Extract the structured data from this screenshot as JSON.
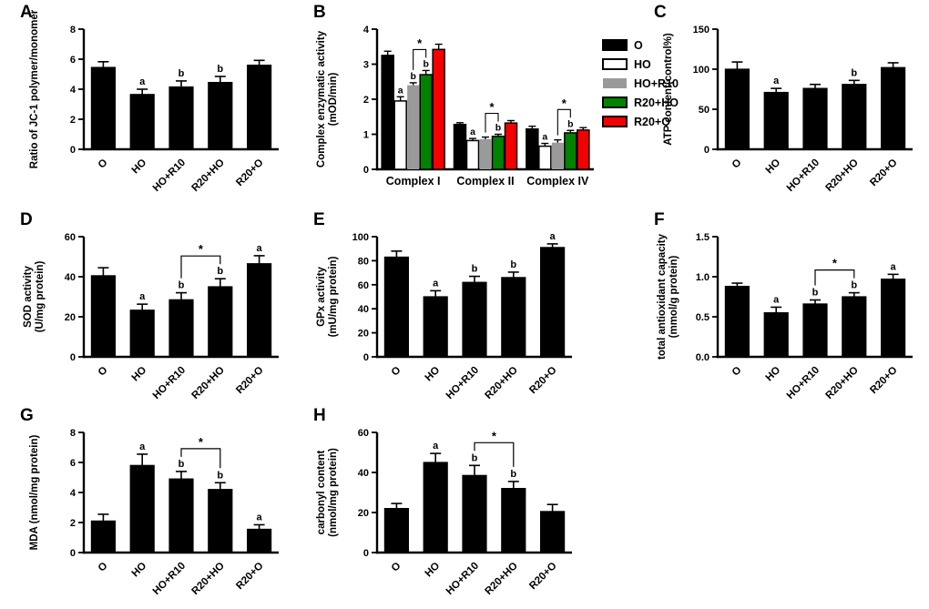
{
  "figure": {
    "panel_letters": [
      "A",
      "B",
      "C",
      "D",
      "E",
      "F",
      "G",
      "H"
    ],
    "group_names": [
      "O",
      "HO",
      "HO+R10",
      "R20+HO",
      "R20+O"
    ],
    "accent_colors": {
      "black": "#000000",
      "white": "#ffffff",
      "gray": "#9a9a9a",
      "green": "#028102",
      "red": "#f40000"
    }
  },
  "chart_data": [
    {
      "panel": "A",
      "type": "bar",
      "ylabel_lines": [
        "Ratio of JC-1 polymer/monomer"
      ],
      "ylim": [
        0,
        8
      ],
      "ytick_values": [
        0,
        2,
        4,
        6,
        8
      ],
      "ytick_labels": [
        "0",
        "2",
        "4",
        "6",
        "8"
      ],
      "categories": [
        "O",
        "HO",
        "HO+R10",
        "R20+HO",
        "R20+O"
      ],
      "values": [
        5.45,
        3.65,
        4.15,
        4.45,
        5.6
      ],
      "errors": [
        0.38,
        0.35,
        0.4,
        0.4,
        0.32
      ],
      "letters": [
        "",
        "a",
        "b",
        "b",
        ""
      ],
      "brackets": [],
      "bar_color": "#000000"
    },
    {
      "panel": "B",
      "type": "grouped-bar",
      "ylabel_lines": [
        "Complex enzymatic activity",
        "(mOD/min)"
      ],
      "ylim": [
        0,
        4
      ],
      "ytick_values": [
        0,
        1,
        2,
        3,
        4
      ],
      "ytick_labels": [
        "0",
        "1",
        "2",
        "3",
        "4"
      ],
      "categories": [
        "Complex I",
        "Complex II",
        "Complex IV"
      ],
      "series": [
        {
          "name": "O",
          "color": "#000000",
          "outlined": true,
          "values": [
            3.25,
            1.28,
            1.15
          ],
          "errors": [
            0.12,
            0.05,
            0.08
          ],
          "letters": [
            "",
            "",
            ""
          ]
        },
        {
          "name": "HO",
          "color": "#ffffff",
          "outlined": true,
          "values": [
            1.95,
            0.82,
            0.66
          ],
          "errors": [
            0.12,
            0.06,
            0.08
          ],
          "letters": [
            "a",
            "a",
            "a"
          ]
        },
        {
          "name": "HO+R10",
          "color": "#9a9a9a",
          "outlined": false,
          "values": [
            2.4,
            0.86,
            0.76
          ],
          "errors": [
            0.07,
            0.06,
            0.08
          ],
          "letters": [
            "b",
            "",
            ""
          ]
        },
        {
          "name": "R20+HO",
          "color": "#028102",
          "outlined": true,
          "values": [
            2.7,
            0.94,
            1.04
          ],
          "errors": [
            0.12,
            0.06,
            0.07
          ],
          "letters": [
            "b",
            "b",
            "b"
          ]
        },
        {
          "name": "R20+O",
          "color": "#f40000",
          "outlined": true,
          "values": [
            3.42,
            1.32,
            1.12
          ],
          "errors": [
            0.15,
            0.07,
            0.07
          ],
          "letters": [
            "",
            "",
            ""
          ]
        }
      ],
      "brackets": [
        {
          "category": 0,
          "from": 2,
          "to": 3,
          "label": "*"
        },
        {
          "category": 1,
          "from": 2,
          "to": 3,
          "label": "*"
        },
        {
          "category": 2,
          "from": 2,
          "to": 3,
          "label": "*"
        }
      ],
      "legend": {
        "position": "right",
        "entries": [
          {
            "label": "O",
            "color": "#000000",
            "outlined": true
          },
          {
            "label": "HO",
            "color": "#ffffff",
            "outlined": true
          },
          {
            "label": "HO+R10",
            "color": "#9a9a9a",
            "outlined": false
          },
          {
            "label": "R20+HO",
            "color": "#028102",
            "outlined": true
          },
          {
            "label": "R20+O",
            "color": "#f40000",
            "outlined": true
          }
        ]
      }
    },
    {
      "panel": "C",
      "type": "bar",
      "ylabel_lines": [
        "ATP content(control%)"
      ],
      "ylim": [
        0,
        150
      ],
      "ytick_values": [
        0,
        50,
        100,
        150
      ],
      "ytick_labels": [
        "0",
        "50",
        "100",
        "150"
      ],
      "categories": [
        "O",
        "HO",
        "HO+R10",
        "R20+HO",
        "R20+O"
      ],
      "values": [
        100,
        71,
        76,
        81,
        102
      ],
      "errors": [
        9,
        5,
        5,
        5,
        6
      ],
      "letters": [
        "",
        "a",
        "",
        "b",
        ""
      ],
      "brackets": [],
      "bar_color": "#000000"
    },
    {
      "panel": "D",
      "type": "bar",
      "ylabel_lines": [
        "SOD activity",
        "(U/mg protein)"
      ],
      "ylim": [
        0,
        60
      ],
      "ytick_values": [
        0,
        20,
        40,
        60
      ],
      "ytick_labels": [
        "0",
        "20",
        "40",
        "60"
      ],
      "categories": [
        "O",
        "HO",
        "HO+R10",
        "R20+HO",
        "R20+O"
      ],
      "values": [
        40.5,
        23.3,
        28.5,
        35,
        46.5
      ],
      "errors": [
        4,
        3,
        3.5,
        4,
        4
      ],
      "letters": [
        "",
        "a",
        "b",
        "b",
        "a"
      ],
      "brackets": [
        {
          "from": 2,
          "to": 3,
          "label": "*"
        }
      ],
      "bar_color": "#000000"
    },
    {
      "panel": "E",
      "type": "bar",
      "ylabel_lines": [
        "GPx activity",
        "(mU/mg protein)"
      ],
      "ylim": [
        0,
        100
      ],
      "ytick_values": [
        0,
        20,
        40,
        60,
        80,
        100
      ],
      "ytick_labels": [
        "0",
        "20",
        "40",
        "60",
        "80",
        "100"
      ],
      "categories": [
        "O",
        "HO",
        "HO+R10",
        "R20+HO",
        "R20+O"
      ],
      "values": [
        83,
        50,
        62,
        66,
        91
      ],
      "errors": [
        5,
        5,
        5,
        4.5,
        3
      ],
      "letters": [
        "",
        "a",
        "b",
        "b",
        "a"
      ],
      "brackets": [],
      "bar_color": "#000000"
    },
    {
      "panel": "F",
      "type": "bar",
      "ylabel_lines": [
        "total antioxidant capacity",
        "(mmol/g protein)"
      ],
      "ylim": [
        0,
        1.5
      ],
      "ytick_values": [
        0,
        0.5,
        1.0,
        1.5
      ],
      "ytick_labels": [
        "0.0",
        "0.5",
        "1.0",
        "1.5"
      ],
      "categories": [
        "O",
        "HO",
        "HO+R10",
        "R20+HO",
        "R20+O"
      ],
      "values": [
        0.88,
        0.55,
        0.66,
        0.75,
        0.97
      ],
      "errors": [
        0.04,
        0.07,
        0.05,
        0.05,
        0.06
      ],
      "letters": [
        "",
        "a",
        "b",
        "b",
        "a"
      ],
      "brackets": [
        {
          "from": 2,
          "to": 3,
          "label": "*"
        }
      ],
      "bar_color": "#000000"
    },
    {
      "panel": "G",
      "type": "bar",
      "ylabel_lines": [
        "MDA (nmol/mg protein)"
      ],
      "ylim": [
        0,
        8
      ],
      "ytick_values": [
        0,
        2,
        4,
        6,
        8
      ],
      "ytick_labels": [
        "0",
        "2",
        "4",
        "6",
        "8"
      ],
      "categories": [
        "O",
        "HO",
        "HO+R10",
        "R20+HO",
        "R20+O"
      ],
      "values": [
        2.1,
        5.8,
        4.9,
        4.2,
        1.55
      ],
      "errors": [
        0.45,
        0.75,
        0.5,
        0.45,
        0.3
      ],
      "letters": [
        "",
        "a",
        "b",
        "b",
        "a"
      ],
      "brackets": [
        {
          "from": 2,
          "to": 3,
          "label": "*"
        }
      ],
      "bar_color": "#000000"
    },
    {
      "panel": "H",
      "type": "bar",
      "ylabel_lines": [
        "carbonyl content",
        "(nmol/mg protein)"
      ],
      "ylim": [
        0,
        60
      ],
      "ytick_values": [
        0,
        20,
        40,
        60
      ],
      "ytick_labels": [
        "0",
        "20",
        "40",
        "60"
      ],
      "categories": [
        "O",
        "HO",
        "HO+R10",
        "R20+HO",
        "R20+O"
      ],
      "values": [
        22,
        45,
        38.5,
        32,
        20.5
      ],
      "errors": [
        2.5,
        4.5,
        5,
        3.5,
        3.5
      ],
      "letters": [
        "",
        "a",
        "b",
        "b",
        ""
      ],
      "brackets": [
        {
          "from": 2,
          "to": 3,
          "label": "*"
        }
      ],
      "bar_color": "#000000"
    }
  ]
}
